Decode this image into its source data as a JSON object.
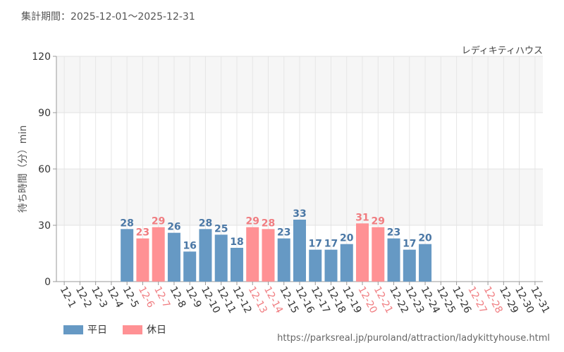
{
  "header": {
    "period": "集計期間：2025-12-01～2025-12-31",
    "attraction": "レディキティハウス"
  },
  "footer": {
    "url": "https://parksreal.jp/puroland/attraction/ladykittyhouse.html"
  },
  "legend": {
    "weekday": "平日",
    "holiday": "休日"
  },
  "colors": {
    "weekday": "#6699c4",
    "holiday": "#ff9194",
    "weekday_text": "#4a77a5",
    "holiday_text": "#f07c80"
  },
  "chart_data": {
    "type": "bar",
    "ylabel": "待ち時間（分）min",
    "ylim": [
      0,
      120
    ],
    "yticks": [
      0,
      30,
      60,
      90,
      120
    ],
    "categories": [
      "12-1",
      "12-2",
      "12-3",
      "12-4",
      "12-5",
      "12-6",
      "12-7",
      "12-8",
      "12-9",
      "12-10",
      "12-11",
      "12-12",
      "12-13",
      "12-14",
      "12-15",
      "12-16",
      "12-17",
      "12-18",
      "12-19",
      "12-20",
      "12-21",
      "12-22",
      "12-23",
      "12-24",
      "12-25",
      "12-26",
      "12-27",
      "12-28",
      "12-29",
      "12-30",
      "12-31"
    ],
    "values": [
      null,
      null,
      null,
      null,
      28,
      23,
      29,
      26,
      16,
      28,
      25,
      18,
      29,
      28,
      23,
      33,
      17,
      17,
      20,
      31,
      29,
      23,
      17,
      20,
      null,
      null,
      null,
      null,
      null,
      null,
      null
    ],
    "day_type": [
      "weekday",
      "weekday",
      "weekday",
      "weekday",
      "weekday",
      "holiday",
      "holiday",
      "weekday",
      "weekday",
      "weekday",
      "weekday",
      "weekday",
      "holiday",
      "holiday",
      "weekday",
      "weekday",
      "weekday",
      "weekday",
      "weekday",
      "holiday",
      "holiday",
      "weekday",
      "weekday",
      "weekday",
      "weekday",
      "weekday",
      "holiday",
      "holiday",
      "weekday",
      "weekday",
      "weekday"
    ]
  }
}
